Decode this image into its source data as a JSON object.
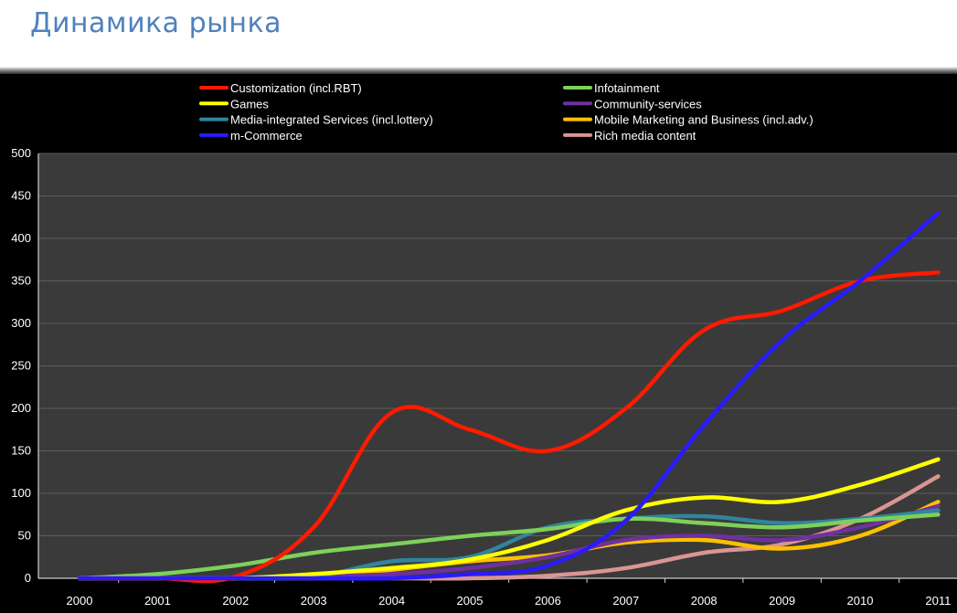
{
  "slide": {
    "title": "Динамика рынка"
  },
  "chart_data": {
    "type": "line",
    "title": "",
    "xlabel": "",
    "ylabel": "",
    "categories": [
      "2000",
      "2001",
      "2002",
      "2003",
      "2004",
      "2005",
      "2006",
      "2007",
      "2008",
      "2009",
      "2010",
      "2011"
    ],
    "ylim": [
      0,
      500
    ],
    "yticks": [
      0,
      50,
      100,
      150,
      200,
      250,
      300,
      350,
      400,
      450,
      500
    ],
    "grid": true,
    "legend_position": "top",
    "background": "#3a3a3a",
    "series": [
      {
        "name": "Customization (incl.RBT)",
        "color": "#ff1a00",
        "values": [
          0,
          0,
          2,
          60,
          195,
          175,
          150,
          200,
          292,
          315,
          350,
          360
        ]
      },
      {
        "name": "Infotainment",
        "color": "#7ed05a",
        "values": [
          0,
          5,
          15,
          30,
          40,
          50,
          58,
          70,
          65,
          60,
          68,
          75
        ]
      },
      {
        "name": "Games",
        "color": "#ffff00",
        "values": [
          0,
          0,
          0,
          5,
          12,
          22,
          45,
          80,
          95,
          90,
          110,
          140
        ]
      },
      {
        "name": "Community-services",
        "color": "#7030a0",
        "values": [
          0,
          0,
          0,
          2,
          5,
          12,
          25,
          45,
          50,
          45,
          60,
          85
        ]
      },
      {
        "name": "Media-integrated Services (incl.lottery)",
        "color": "#31859c",
        "values": [
          0,
          0,
          0,
          2,
          20,
          25,
          60,
          70,
          73,
          65,
          70,
          80
        ]
      },
      {
        "name": "Mobile Marketing and Business (incl.adv.)",
        "color": "#ffc000",
        "values": [
          0,
          0,
          0,
          2,
          10,
          20,
          27,
          42,
          45,
          35,
          50,
          90
        ]
      },
      {
        "name": "m-Commerce",
        "color": "#2a1aff",
        "values": [
          0,
          0,
          0,
          0,
          0,
          5,
          15,
          68,
          180,
          280,
          350,
          430
        ]
      },
      {
        "name": "Rich media content",
        "color": "#d99594",
        "values": [
          0,
          0,
          0,
          0,
          0,
          0,
          3,
          12,
          30,
          40,
          70,
          120
        ]
      }
    ]
  }
}
